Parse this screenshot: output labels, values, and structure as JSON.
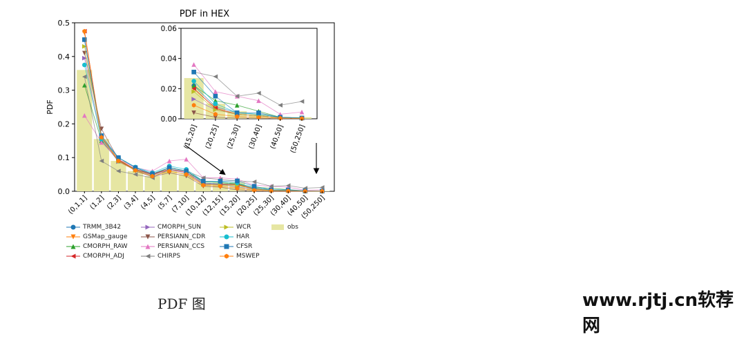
{
  "chart_data": {
    "type": "line",
    "title": "PDF in HEX",
    "xlabel": "",
    "ylabel": "PDF",
    "ylim": [
      0,
      0.5
    ],
    "yticks": [
      "0.0",
      "0.1",
      "0.2",
      "0.3",
      "0.4",
      "0.5"
    ],
    "categories": [
      "(0,1,1]",
      "(1,2]",
      "(2,3]",
      "(3,4]",
      "(4,5]",
      "(5,7]",
      "(7,10]",
      "(10,12]",
      "(12,15]",
      "(15,20]",
      "(20,25]",
      "(25,30]",
      "(30,40]",
      "(40,50]",
      "(50,250]"
    ],
    "obs": [
      0.36,
      0.155,
      0.09,
      0.06,
      0.045,
      0.06,
      0.05,
      0.025,
      0.025,
      0.027,
      0.01,
      0.005,
      0.003,
      0.001,
      0.001
    ],
    "series": [
      {
        "name": "TRMM_3B42",
        "color": "#1f77b4",
        "marker": "circle",
        "values": [
          0.45,
          0.16,
          0.1,
          0.07,
          0.05,
          0.07,
          0.06,
          0.025,
          0.022,
          0.022,
          0.008,
          0.004,
          0.003,
          0.001,
          0.0005
        ]
      },
      {
        "name": "GSMap_gauge",
        "color": "#ff7f0e",
        "marker": "tri-down",
        "values": [
          0.47,
          0.16,
          0.095,
          0.065,
          0.05,
          0.065,
          0.055,
          0.022,
          0.02,
          0.02,
          0.007,
          0.003,
          0.002,
          0.0008,
          0.0004
        ]
      },
      {
        "name": "CMORPH_RAW",
        "color": "#2ca02c",
        "marker": "tri-up",
        "values": [
          0.315,
          0.15,
          0.09,
          0.065,
          0.05,
          0.07,
          0.06,
          0.028,
          0.026,
          0.022,
          0.012,
          0.009,
          0.005,
          0.001,
          0.0006
        ]
      },
      {
        "name": "CMORPH_ADJ",
        "color": "#d62728",
        "marker": "tri-left",
        "values": [
          0.475,
          0.16,
          0.092,
          0.066,
          0.05,
          0.066,
          0.056,
          0.022,
          0.02,
          0.02,
          0.007,
          0.003,
          0.002,
          0.0008,
          0.0004
        ]
      },
      {
        "name": "CMORPH_SUN",
        "color": "#9467bd",
        "marker": "tri-right",
        "values": [
          0.395,
          0.155,
          0.088,
          0.063,
          0.048,
          0.064,
          0.055,
          0.022,
          0.02,
          0.013,
          0.006,
          0.003,
          0.002,
          0.0008,
          0.0004
        ]
      },
      {
        "name": "PERSIANN_CDR",
        "color": "#8c564b",
        "marker": "tri-down",
        "values": [
          0.41,
          0.185,
          0.095,
          0.06,
          0.043,
          0.055,
          0.045,
          0.015,
          0.012,
          0.004,
          0.001,
          0.0005,
          0.0003,
          0.0001,
          0.0001
        ]
      },
      {
        "name": "PERSIANN_CCS",
        "color": "#e377c2",
        "marker": "tri-up",
        "values": [
          0.225,
          0.145,
          0.095,
          0.07,
          0.06,
          0.09,
          0.095,
          0.04,
          0.04,
          0.036,
          0.018,
          0.015,
          0.012,
          0.003,
          0.0045
        ]
      },
      {
        "name": "CHIRPS",
        "color": "#7f7f7f",
        "marker": "tri-left",
        "values": [
          0.34,
          0.09,
          0.06,
          0.05,
          0.04,
          0.065,
          0.06,
          0.04,
          0.035,
          0.031,
          0.028,
          0.015,
          0.017,
          0.009,
          0.0115
        ]
      },
      {
        "name": "WCR",
        "color": "#bcbd22",
        "marker": "tri-right",
        "values": [
          0.43,
          0.16,
          0.09,
          0.062,
          0.046,
          0.06,
          0.05,
          0.02,
          0.018,
          0.018,
          0.006,
          0.003,
          0.002,
          0.0008,
          0.0004
        ]
      },
      {
        "name": "HAR",
        "color": "#17becf",
        "marker": "circle",
        "values": [
          0.375,
          0.155,
          0.1,
          0.072,
          0.055,
          0.075,
          0.065,
          0.03,
          0.028,
          0.025,
          0.01,
          0.004,
          0.003,
          0.001,
          0.0005
        ]
      },
      {
        "name": "CFSR",
        "color": "#1f77b4",
        "marker": "square",
        "values": [
          0.45,
          0.165,
          0.1,
          0.07,
          0.052,
          0.07,
          0.06,
          0.03,
          0.03,
          0.031,
          0.015,
          0.004,
          0.004,
          0.001,
          0.0005
        ]
      },
      {
        "name": "MSWEP",
        "color": "#ff7f0e",
        "marker": "hexagon",
        "values": [
          0.475,
          0.16,
          0.09,
          0.062,
          0.045,
          0.06,
          0.05,
          0.018,
          0.015,
          0.009,
          0.003,
          0.0015,
          0.001,
          0.0004,
          0.0002
        ]
      }
    ],
    "obs_label": "obs",
    "obs_color": "#e6e6a3",
    "inset": {
      "ylim": [
        0,
        0.06
      ],
      "yticks": [
        "0.00",
        "0.02",
        "0.04",
        "0.06"
      ],
      "categories": [
        "(15,20]",
        "(20,25]",
        "(25,30]",
        "(30,40]",
        "(40,50]",
        "(50,250]"
      ],
      "start_index": 9
    },
    "legend_position": "below"
  },
  "caption": "PDF 图",
  "watermark": "www.rjtj.cn软荐网"
}
